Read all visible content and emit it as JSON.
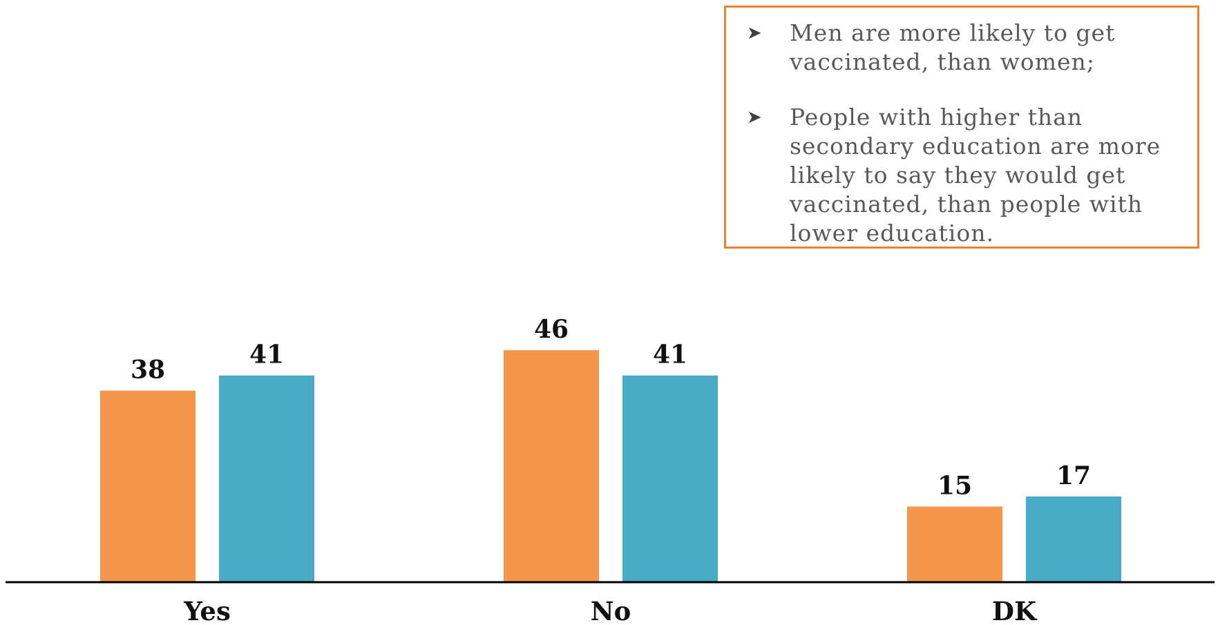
{
  "chart_data": {
    "type": "bar",
    "categories": [
      "Yes",
      "No",
      "DK"
    ],
    "series": [
      {
        "values": [
          38,
          46,
          15
        ],
        "color": "#f5964a"
      },
      {
        "values": [
          41,
          41,
          17
        ],
        "color": "#4aabc6"
      }
    ],
    "ylim": [
      0,
      55
    ],
    "grid": false,
    "legend": "none"
  },
  "notes": {
    "bullet_icon": "arrowhead-bullet-icon",
    "border_color": "#ed7d31",
    "items": [
      "Men are more likely to get vaccinated, than women;",
      "People with higher than secondary education are more likely to say they would get vaccinated, than people with lower education."
    ]
  }
}
